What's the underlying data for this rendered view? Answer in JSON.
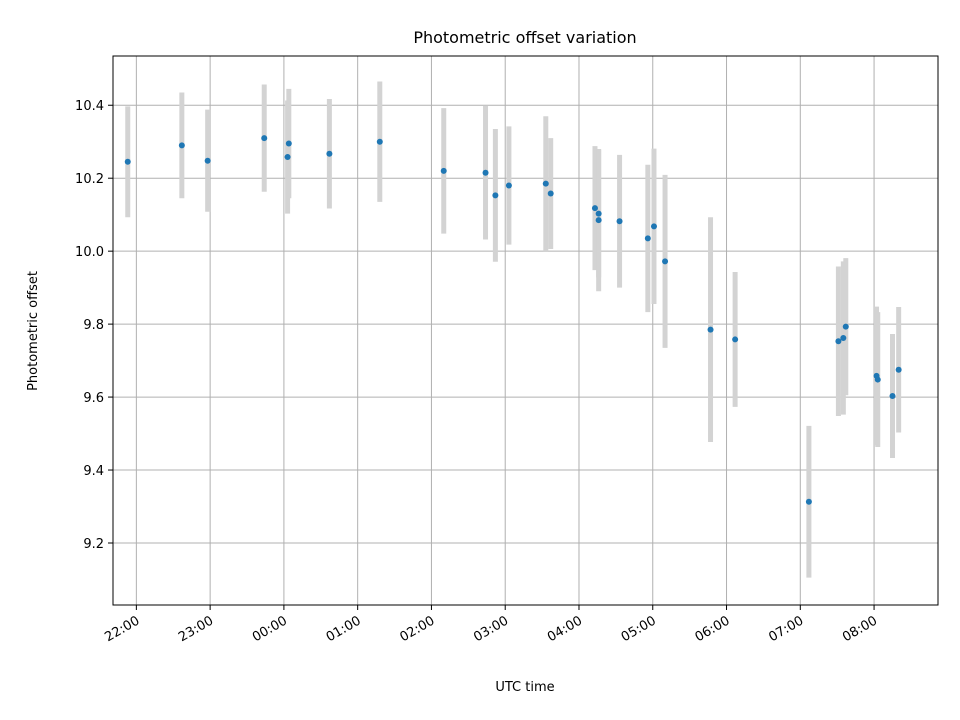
{
  "chart_data": {
    "type": "scatter",
    "title": "Photometric offset variation",
    "xlabel": "UTC time",
    "ylabel": "Photometric offset",
    "xlim": [
      "21:41",
      "08:52"
    ],
    "ylim": [
      9.03,
      10.535
    ],
    "x_ticks": [
      "22:00",
      "23:00",
      "00:00",
      "01:00",
      "02:00",
      "03:00",
      "04:00",
      "05:00",
      "06:00",
      "07:00",
      "08:00"
    ],
    "y_ticks": [
      "9.2",
      "9.4",
      "9.6",
      "9.8",
      "10.0",
      "10.2",
      "10.4"
    ],
    "grid": true,
    "point_color": "#1f77b4",
    "errorbar_color": "#d3d3d3",
    "points": [
      {
        "t": "21:53",
        "y": 10.245,
        "yerr": 0.152
      },
      {
        "t": "22:37",
        "y": 10.29,
        "yerr": 0.145
      },
      {
        "t": "22:58",
        "y": 10.248,
        "yerr": 0.14
      },
      {
        "t": "23:44",
        "y": 10.31,
        "yerr": 0.147
      },
      {
        "t": "00:03",
        "y": 10.258,
        "yerr": 0.155
      },
      {
        "t": "00:04",
        "y": 10.295,
        "yerr": 0.15
      },
      {
        "t": "00:37",
        "y": 10.267,
        "yerr": 0.15
      },
      {
        "t": "01:18",
        "y": 10.3,
        "yerr": 0.165
      },
      {
        "t": "02:10",
        "y": 10.22,
        "yerr": 0.172
      },
      {
        "t": "02:44",
        "y": 10.215,
        "yerr": 0.183
      },
      {
        "t": "02:52",
        "y": 10.153,
        "yerr": 0.182
      },
      {
        "t": "03:03",
        "y": 10.18,
        "yerr": 0.162
      },
      {
        "t": "03:33",
        "y": 10.185,
        "yerr": 0.185
      },
      {
        "t": "03:37",
        "y": 10.158,
        "yerr": 0.152
      },
      {
        "t": "04:13",
        "y": 10.118,
        "yerr": 0.17
      },
      {
        "t": "04:16",
        "y": 10.103,
        "yerr": 0.175
      },
      {
        "t": "04:16",
        "y": 10.085,
        "yerr": 0.195
      },
      {
        "t": "04:33",
        "y": 10.082,
        "yerr": 0.182
      },
      {
        "t": "04:56",
        "y": 10.035,
        "yerr": 0.202
      },
      {
        "t": "05:01",
        "y": 10.068,
        "yerr": 0.213
      },
      {
        "t": "05:10",
        "y": 9.972,
        "yerr": 0.237
      },
      {
        "t": "05:47",
        "y": 9.785,
        "yerr": 0.308
      },
      {
        "t": "06:07",
        "y": 9.758,
        "yerr": 0.185
      },
      {
        "t": "07:07",
        "y": 9.313,
        "yerr": 0.208
      },
      {
        "t": "07:31",
        "y": 9.753,
        "yerr": 0.205
      },
      {
        "t": "07:35",
        "y": 9.762,
        "yerr": 0.21
      },
      {
        "t": "07:37",
        "y": 9.793,
        "yerr": 0.188
      },
      {
        "t": "08:02",
        "y": 9.658,
        "yerr": 0.19
      },
      {
        "t": "08:03",
        "y": 9.648,
        "yerr": 0.185
      },
      {
        "t": "08:15",
        "y": 9.603,
        "yerr": 0.17
      },
      {
        "t": "08:20",
        "y": 9.675,
        "yerr": 0.172
      }
    ]
  }
}
